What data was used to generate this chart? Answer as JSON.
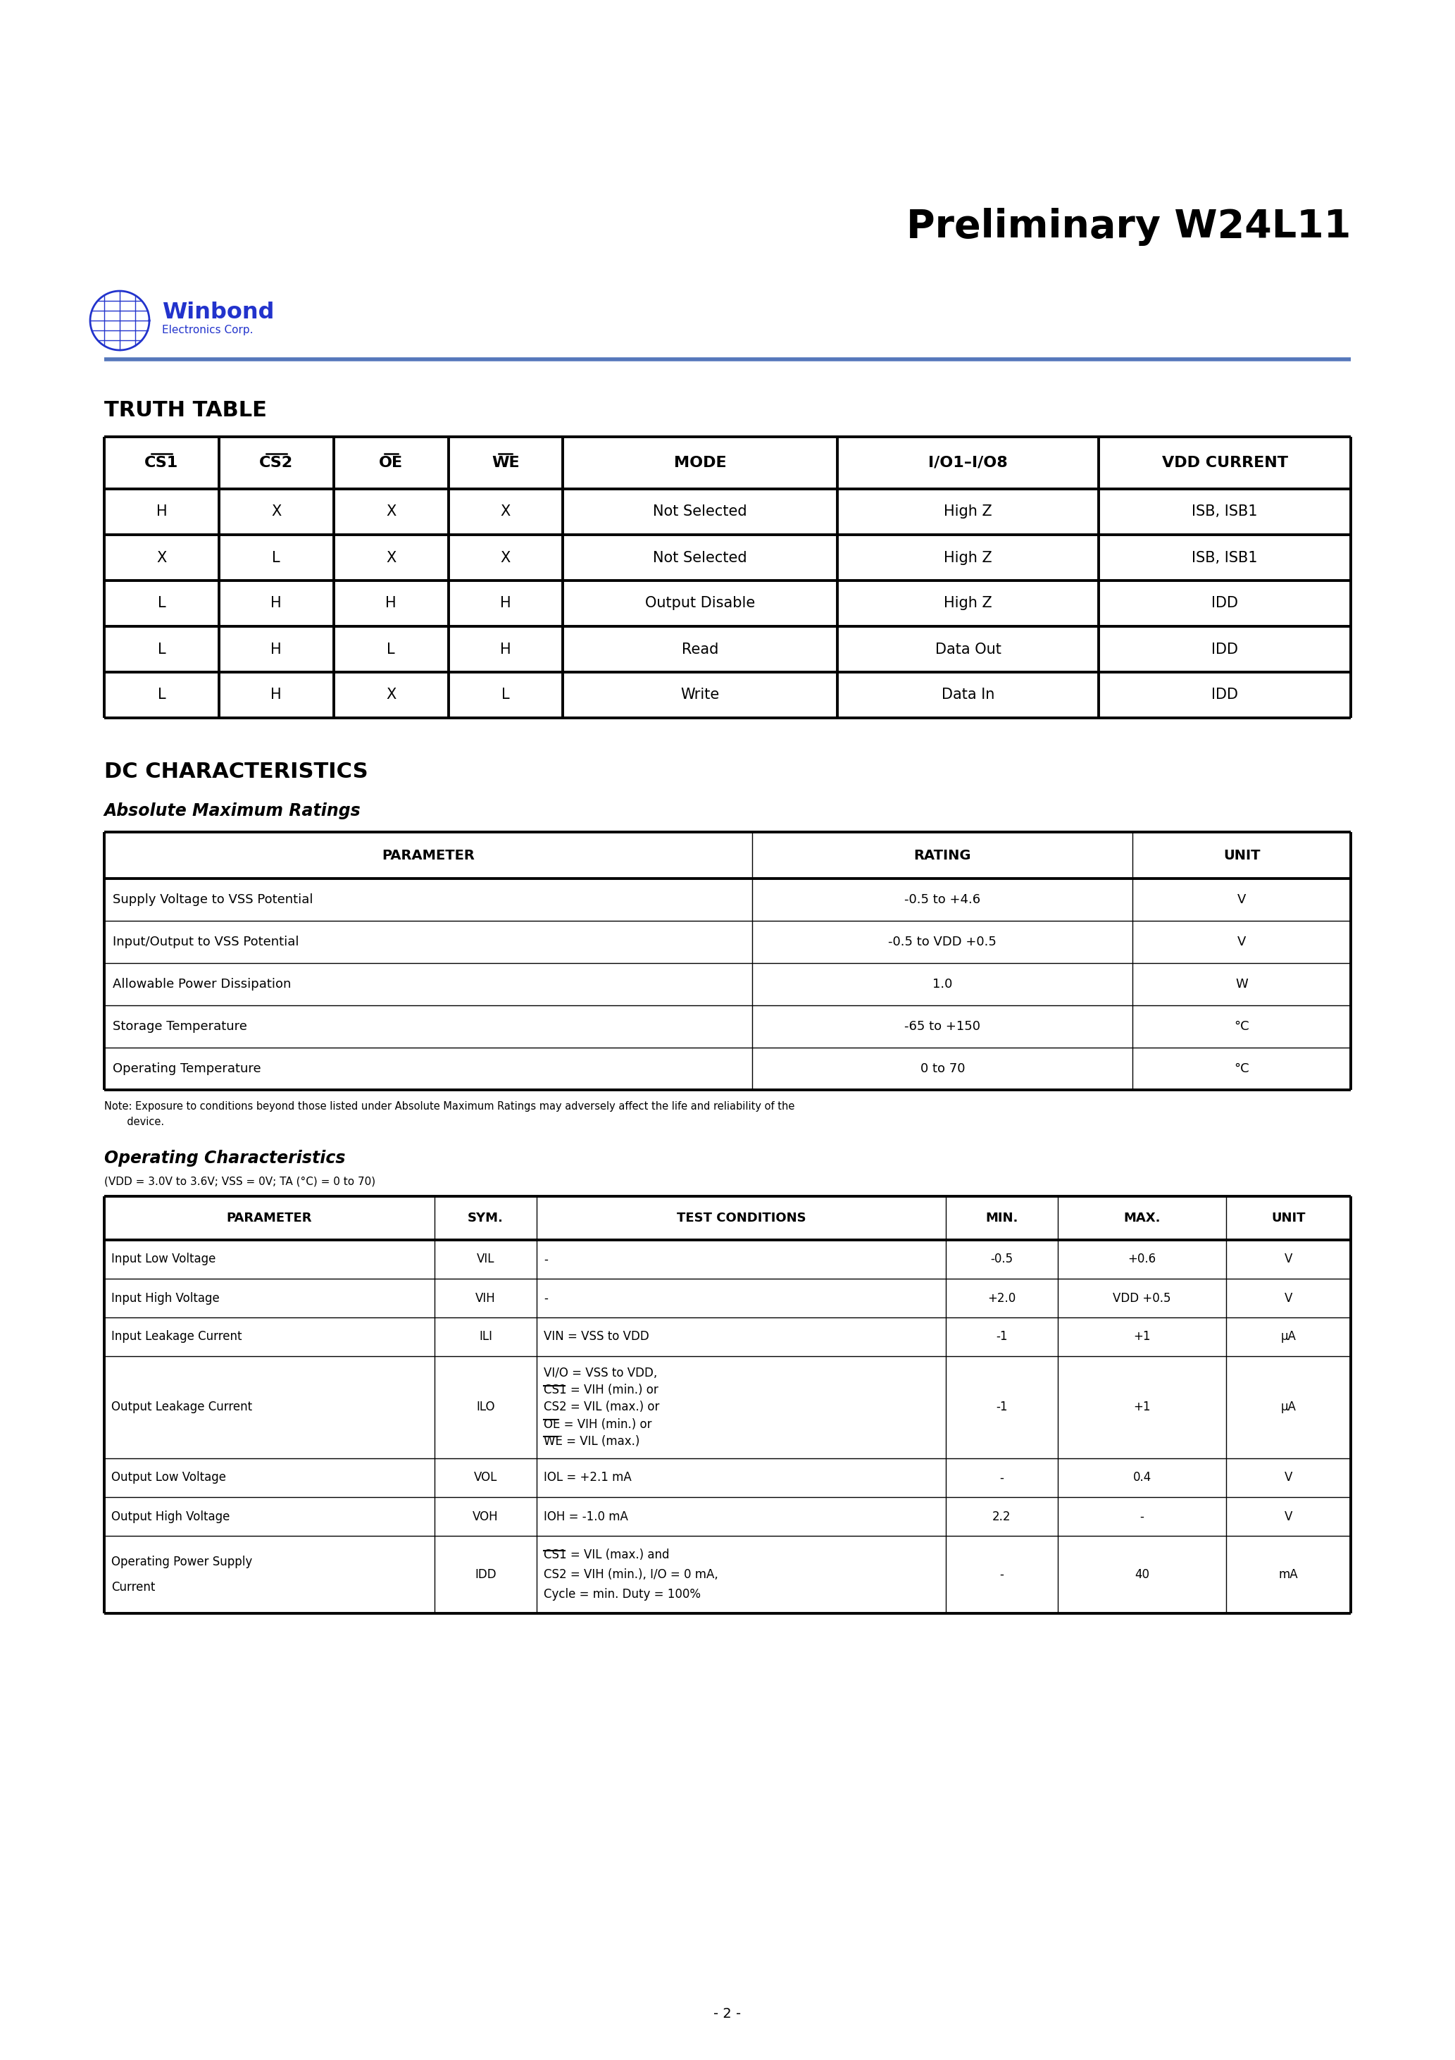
{
  "title": "Preliminary W24L11",
  "bg_color": "#ffffff",
  "text_color": "#000000",
  "blue_color": "#2233cc",
  "line_color": "#5577bb",
  "page_number": "- 2 -",
  "truth_table_title": "TRUTH TABLE",
  "truth_table_headers": [
    "CS1",
    "CS2",
    "OE",
    "WE",
    "MODE",
    "I/O1–I/O8",
    "VDD CURRENT"
  ],
  "truth_table_col_props": [
    0.092,
    0.092,
    0.092,
    0.092,
    0.22,
    0.21,
    0.202
  ],
  "truth_table_rows": [
    [
      "H",
      "X",
      "X",
      "X",
      "Not Selected",
      "High Z",
      "ISB, ISB1"
    ],
    [
      "X",
      "L",
      "X",
      "X",
      "Not Selected",
      "High Z",
      "ISB, ISB1"
    ],
    [
      "L",
      "H",
      "H",
      "H",
      "Output Disable",
      "High Z",
      "IDD"
    ],
    [
      "L",
      "H",
      "L",
      "H",
      "Read",
      "Data Out",
      "IDD"
    ],
    [
      "L",
      "H",
      "X",
      "L",
      "Write",
      "Data In",
      "IDD"
    ]
  ],
  "truth_table_overline_cols": [
    0,
    1,
    2,
    3
  ],
  "dc_title": "DC CHARACTERISTICS",
  "abs_max_title": "Absolute Maximum Ratings",
  "abs_max_headers": [
    "PARAMETER",
    "RATING",
    "UNIT"
  ],
  "abs_max_col_props": [
    0.52,
    0.305,
    0.175
  ],
  "abs_max_rows": [
    [
      "Supply Voltage to VSS Potential",
      "-0.5 to +4.6",
      "V"
    ],
    [
      "Input/Output to VSS Potential",
      "-0.5 to VDD +0.5",
      "V"
    ],
    [
      "Allowable Power Dissipation",
      "1.0",
      "W"
    ],
    [
      "Storage Temperature",
      "-65 to +150",
      "°C"
    ],
    [
      "Operating Temperature",
      "0 to 70",
      "°C"
    ]
  ],
  "abs_max_note1": "Note: Exposure to conditions beyond those listed under Absolute Maximum Ratings may adversely affect the life and reliability of the",
  "abs_max_note2": "       device.",
  "op_char_title": "Operating Characteristics",
  "op_char_subtitle": "(VDD = 3.0V to 3.6V; VSS = 0V; TA (°C) = 0 to 70)",
  "op_char_headers": [
    "PARAMETER",
    "SYM.",
    "TEST CONDITIONS",
    "MIN.",
    "MAX.",
    "UNIT"
  ],
  "op_char_col_props": [
    0.265,
    0.082,
    0.328,
    0.09,
    0.135,
    0.1
  ],
  "op_char_rows": [
    [
      "Input Low Voltage",
      "VIL",
      "-",
      "-0.5",
      "+0.6",
      "V"
    ],
    [
      "Input High Voltage",
      "VIH",
      "-",
      "+2.0",
      "VDD +0.5",
      "V"
    ],
    [
      "Input Leakage Current",
      "ILI",
      "VIN = VSS to VDD",
      "-1",
      "+1",
      "μA"
    ],
    [
      "Output Leakage Current",
      "ILO",
      "VI/O = VSS to VDD,\nCS1 = VIH (min.) or\nCS2 = VIL (max.) or\nOE = VIH (min.) or\nWE = VIL (max.)",
      "-1",
      "+1",
      "μA"
    ],
    [
      "Output Low Voltage",
      "VOL",
      "IOL = +2.1 mA",
      "-",
      "0.4",
      "V"
    ],
    [
      "Output High Voltage",
      "VOH",
      "IOH = -1.0 mA",
      "2.2",
      "-",
      "V"
    ],
    [
      "Operating Power Supply\nCurrent",
      "IDD",
      "CS1 = VIL (max.) and\nCS2 = VIH (min.), I/O = 0 mA,\nCycle = min. Duty = 100%",
      "-",
      "40",
      "mA"
    ]
  ],
  "op_char_row_heights": [
    55,
    55,
    55,
    145,
    55,
    55,
    110
  ]
}
